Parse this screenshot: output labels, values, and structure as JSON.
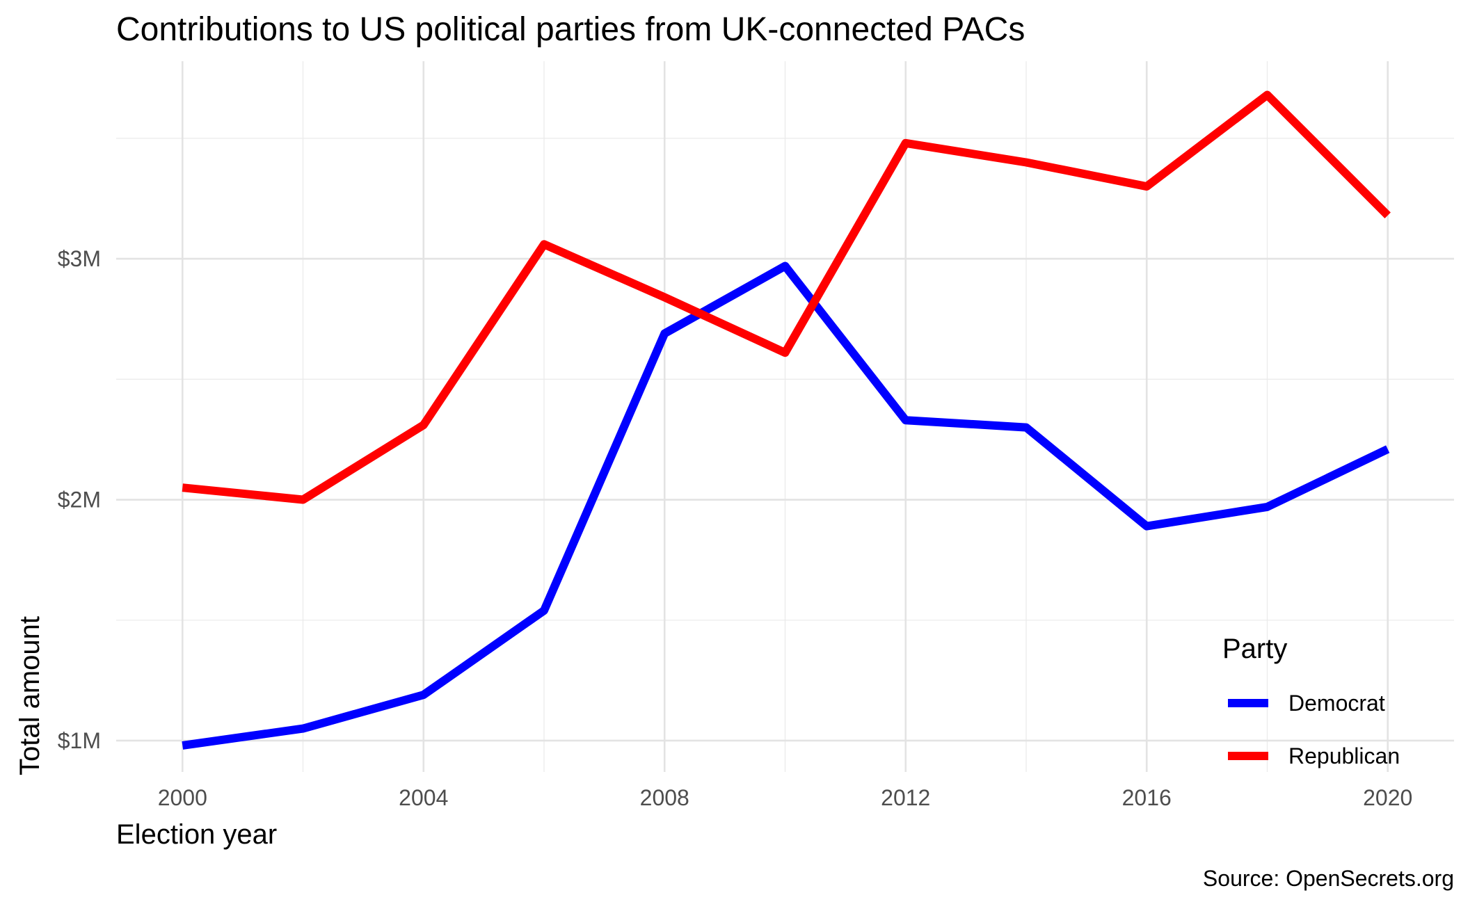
{
  "chart_data": {
    "type": "line",
    "title": "Contributions to US political parties from UK-connected PACs",
    "xlabel": "Election year",
    "ylabel": "Total amount",
    "caption": "Source: OpenSecrets.org",
    "x": [
      2000,
      2002,
      2004,
      2006,
      2008,
      2010,
      2012,
      2014,
      2016,
      2018,
      2020
    ],
    "x_ticks": [
      2000,
      2004,
      2008,
      2012,
      2016,
      2020
    ],
    "x_tick_labels": [
      "2000",
      "2004",
      "2008",
      "2012",
      "2016",
      "2020"
    ],
    "y_ticks": [
      1000000,
      2000000,
      3000000
    ],
    "y_tick_labels": [
      "$1M",
      "$2M",
      "$3M"
    ],
    "xlim": [
      1998.9,
      2021.1
    ],
    "ylim": [
      870000,
      3820000
    ],
    "grid": true,
    "legend_title": "Party",
    "legend_position": "inside-bottom-right",
    "series": [
      {
        "name": "Democrat",
        "color": "#0000ff",
        "values": [
          980000,
          1050000,
          1190000,
          1540000,
          2690000,
          2970000,
          2330000,
          2300000,
          1890000,
          1970000,
          2210000
        ]
      },
      {
        "name": "Republican",
        "color": "#ff0000",
        "values": [
          2050000,
          2000000,
          2310000,
          3060000,
          2840000,
          2610000,
          3480000,
          3400000,
          3300000,
          3680000,
          3180000
        ]
      }
    ]
  }
}
